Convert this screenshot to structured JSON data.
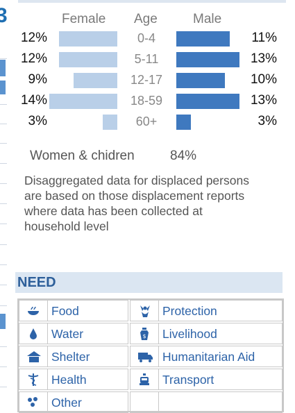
{
  "chart_data": {
    "type": "bar",
    "columns": [
      "Female",
      "Age",
      "Male"
    ],
    "categories": [
      "0-4",
      "5-11",
      "12-17",
      "18-59",
      "60+"
    ],
    "series": [
      {
        "name": "Female",
        "values": [
          12,
          12,
          9,
          14,
          3
        ],
        "labels": [
          "12%",
          "12%",
          "9%",
          "14%",
          "3%"
        ]
      },
      {
        "name": "Male",
        "values": [
          11,
          13,
          10,
          13,
          3
        ],
        "labels": [
          "11%",
          "13%",
          "10%",
          "13%",
          "3%"
        ]
      }
    ],
    "colors": {
      "Female": "#b9cfe8",
      "Male": "#3f79bf"
    }
  },
  "summary": {
    "label": "Women & chidren",
    "value": "84%"
  },
  "note": "Disaggregated data for displaced persons are based on those displacement reports where data has been collected at household level",
  "need": {
    "title": "NEED",
    "items": [
      {
        "label": "Food",
        "icon": "food-icon"
      },
      {
        "label": "Protection",
        "icon": "protection-icon"
      },
      {
        "label": "Water",
        "icon": "water-icon"
      },
      {
        "label": "Livelihood",
        "icon": "livelihood-icon"
      },
      {
        "label": "Shelter",
        "icon": "shelter-icon"
      },
      {
        "label": "Humanitarian Aid",
        "icon": "humanitarian-aid-icon"
      },
      {
        "label": "Health",
        "icon": "health-icon"
      },
      {
        "label": "Transport",
        "icon": "transport-icon"
      },
      {
        "label": "Other",
        "icon": "other-icon"
      },
      {
        "label": "",
        "icon": ""
      }
    ],
    "icon_color": "#2d63a8"
  }
}
